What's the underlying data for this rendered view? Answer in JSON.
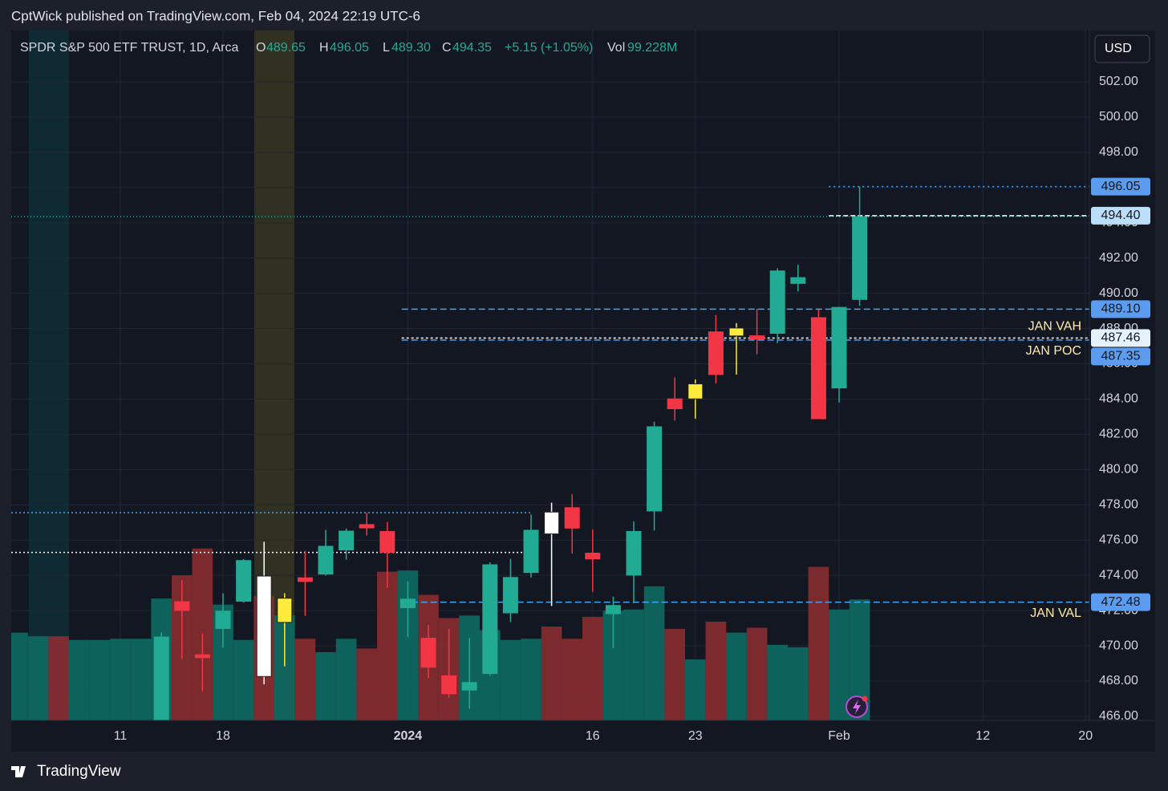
{
  "header": {
    "publisher": "CptWick published on TradingView.com, Feb 04, 2024 22:19 UTC-6",
    "brand": "TradingView"
  },
  "legend": {
    "symbol": "SPDR S&P 500 ETF TRUST, 1D, Arca",
    "o_key": "O",
    "o": "489.65",
    "h_key": "H",
    "h": "496.05",
    "l_key": "L",
    "l": "489.30",
    "c_key": "C",
    "c": "494.35",
    "change": "+5.15 (+1.05%)",
    "vol_key": "Vol",
    "vol": "99.228M"
  },
  "currency": "USD",
  "chart_data": {
    "type": "candlestick",
    "categories": [
      null,
      null,
      null,
      null,
      null,
      "11",
      null,
      null,
      null,
      null,
      "18",
      null,
      null,
      null,
      null,
      null,
      null,
      null,
      null,
      "2024",
      null,
      null,
      null,
      null,
      null,
      null,
      null,
      null,
      "16",
      null,
      null,
      null,
      null,
      "23",
      null,
      null,
      null,
      null,
      null,
      null,
      "Feb",
      null,
      null,
      null,
      null,
      null,
      null,
      "12",
      null,
      null,
      null,
      null,
      "20"
    ],
    "open": [
      null,
      null,
      null,
      null,
      null,
      null,
      null,
      464.5,
      472.5,
      469.49,
      470.98,
      472.53,
      473.96,
      471.33,
      473.86,
      474.07,
      475.44,
      476.88,
      476.49,
      472.16,
      470.43,
      468.3,
      467.49,
      468.43,
      471.87,
      474.16,
      477.59,
      477.84,
      475.26,
      471.82,
      474.01,
      477.65,
      484.01,
      484.01,
      487.81,
      487.58,
      487.59,
      487.73,
      490.56,
      488.62,
      484.63,
      489.65,
      null,
      null,
      null,
      null,
      null,
      null,
      null,
      null,
      null,
      null,
      null
    ],
    "high": [
      null,
      null,
      null,
      null,
      null,
      null,
      null,
      470.76,
      473.73,
      470.7,
      472.98,
      474.92,
      475.9,
      472.98,
      475.38,
      476.58,
      476.66,
      477.55,
      477.03,
      473.67,
      471.19,
      470.96,
      470.44,
      474.75,
      474.93,
      477.45,
      478.12,
      478.6,
      476.61,
      472.79,
      477.06,
      482.72,
      485.22,
      485.11,
      488.77,
      488.31,
      489.12,
      491.42,
      491.62,
      489.08,
      489.23,
      496.05,
      null,
      null,
      null,
      null,
      null,
      null,
      null,
      null,
      null,
      null,
      null
    ],
    "low": [
      null,
      null,
      null,
      null,
      null,
      null,
      null,
      464.12,
      469.25,
      467.43,
      469.89,
      472.45,
      467.82,
      468.84,
      471.7,
      473.99,
      474.89,
      476.26,
      473.3,
      470.49,
      468.17,
      467.05,
      466.43,
      468.3,
      471.35,
      473.87,
      472.26,
      475.23,
      473.06,
      469.87,
      472.42,
      476.54,
      482.78,
      482.89,
      484.88,
      485.39,
      486.54,
      487.17,
      490.11,
      482.86,
      483.8,
      489.3,
      null,
      null,
      null,
      null,
      null,
      null,
      null,
      null,
      null,
      null,
      null
    ],
    "close": [
      null,
      null,
      null,
      null,
      null,
      null,
      null,
      470.5,
      472.01,
      469.33,
      471.97,
      474.84,
      468.26,
      472.7,
      473.65,
      475.65,
      476.51,
      476.69,
      475.31,
      472.65,
      468.79,
      467.28,
      467.92,
      474.6,
      473.88,
      476.56,
      476.35,
      476.68,
      474.93,
      472.29,
      476.49,
      482.43,
      483.45,
      484.86,
      485.39,
      488.03,
      487.41,
      491.27,
      490.89,
      482.88,
      489.2,
      494.35,
      null,
      null,
      null,
      null,
      null,
      null,
      null,
      null,
      null,
      null,
      null
    ],
    "candle_colors": [
      null,
      null,
      null,
      null,
      null,
      null,
      null,
      "#22ab94",
      "#f23645",
      "#f23645",
      "#22ab94",
      "#22ab94",
      "#ffffff",
      "#ffeb3b",
      "#f23645",
      "#22ab94",
      "#22ab94",
      "#f23645",
      "#f23645",
      "#22ab94",
      "#f23645",
      "#f23645",
      "#22ab94",
      "#22ab94",
      "#22ab94",
      "#22ab94",
      "#ffffff",
      "#f23645",
      "#f23645",
      "#22ab94",
      "#22ab94",
      "#22ab94",
      "#f23645",
      "#ffeb3b",
      "#f23645",
      "#ffeb3b",
      "#f23645",
      "#22ab94",
      "#22ab94",
      "#f23645",
      "#22ab94",
      "#22ab94",
      null,
      null,
      null,
      null,
      null,
      null,
      null,
      null,
      null,
      null,
      null
    ],
    "volume": [
      72,
      69,
      69,
      66,
      66,
      67,
      67,
      100,
      119,
      141,
      95,
      66,
      102,
      86,
      67,
      56,
      67,
      59,
      122,
      123,
      103,
      84,
      86,
      74,
      66,
      67,
      77,
      67,
      85,
      90,
      91,
      110,
      75,
      50,
      81,
      72,
      76,
      62,
      60,
      126,
      91,
      99.228,
      null,
      null,
      null,
      null,
      null,
      null,
      null,
      null,
      null,
      null,
      null
    ],
    "volume_colors": [
      "#0e6a63",
      "#0e6a63",
      "#8a2c31",
      "#0e6a63",
      "#0e6a63",
      "#0e6a63",
      "#0e6a63",
      "#0e6a63",
      "#8a2c31",
      "#8a2c31",
      "#0e6a63",
      "#0e6a63",
      "#8a2c31",
      "#0e6a63",
      "#8a2c31",
      "#0e6a63",
      "#0e6a63",
      "#8a2c31",
      "#8a2c31",
      "#0e6a63",
      "#8a2c31",
      "#8a2c31",
      "#0e6a63",
      "#0e6a63",
      "#0e6a63",
      "#0e6a63",
      "#8a2c31",
      "#8a2c31",
      "#8a2c31",
      "#0e6a63",
      "#0e6a63",
      "#0e6a63",
      "#8a2c31",
      "#0e6a63",
      "#8a2c31",
      "#0e6a63",
      "#8a2c31",
      "#0e6a63",
      "#0e6a63",
      "#8a2c31",
      "#0e6a63",
      "#0e6a63",
      null,
      null,
      null,
      null,
      null,
      null,
      null,
      null,
      null,
      null,
      null
    ],
    "volume_lim": [
      0,
      566
    ],
    "ylim": [
      465.77,
      504.91
    ],
    "yticks": [
      {
        "value": 466,
        "label": "466.00"
      },
      {
        "value": 468,
        "label": "468.00"
      },
      {
        "value": 470,
        "label": "470.00"
      },
      {
        "value": 472,
        "label": "472.00"
      },
      {
        "value": 474,
        "label": "474.00"
      },
      {
        "value": 476,
        "label": "476.00"
      },
      {
        "value": 478,
        "label": "478.00"
      },
      {
        "value": 480,
        "label": "480.00"
      },
      {
        "value": 482,
        "label": "482.00"
      },
      {
        "value": 484,
        "label": "484.00"
      },
      {
        "value": 486,
        "label": "486.00"
      },
      {
        "value": 488,
        "label": "488.00"
      },
      {
        "value": 490,
        "label": "490.00"
      },
      {
        "value": 492,
        "label": "492.00"
      },
      {
        "value": 494,
        "label": "494.00"
      },
      {
        "value": 496,
        "label": "496.00"
      },
      {
        "value": 498,
        "label": "498.00"
      },
      {
        "value": 500,
        "label": "500.00"
      },
      {
        "value": 502,
        "label": "502.00"
      }
    ],
    "grid": true,
    "levels": [
      {
        "value": 494.35,
        "color": "#26a69a",
        "dash": "1 3"
      },
      {
        "value": 477.55,
        "to": 25,
        "color": "#42a5f5",
        "dash": "2 3"
      },
      {
        "value": 475.3,
        "to": 25,
        "color": "#ffffff",
        "dash": "2 3"
      },
      {
        "value": 496.05,
        "from": 39.5,
        "color": "#42a5f5",
        "dash": "2 4",
        "tag_bg": "#5b9cf0"
      },
      {
        "value": 494.4,
        "label": "494.40",
        "from": 39.5,
        "color": "#ffffff",
        "dash": "6 3",
        "tag_bg": "#bbdefb"
      },
      {
        "value": 489.1,
        "label": "489.10",
        "from": 18.7,
        "color": "#42a5f5",
        "dash": "8 4",
        "tag_bg": "#5b9cf0"
      },
      {
        "value": 487.46,
        "from": 18.7,
        "color": "#ffffff",
        "dash": "3 3",
        "tag_bg": "#e3f2fd",
        "text": "JAN VAH"
      },
      {
        "value": 487.35,
        "from": 18.7,
        "color": "#42a5f5",
        "dash": "8 4",
        "tag_bg": "#5b9cf0",
        "text": "JAN POC"
      },
      {
        "value": 472.48,
        "from": 18.7,
        "color": "#42a5f5",
        "dash": "8 4",
        "tag_bg": "#5b9cf0",
        "text": "JAN VAL"
      }
    ]
  }
}
